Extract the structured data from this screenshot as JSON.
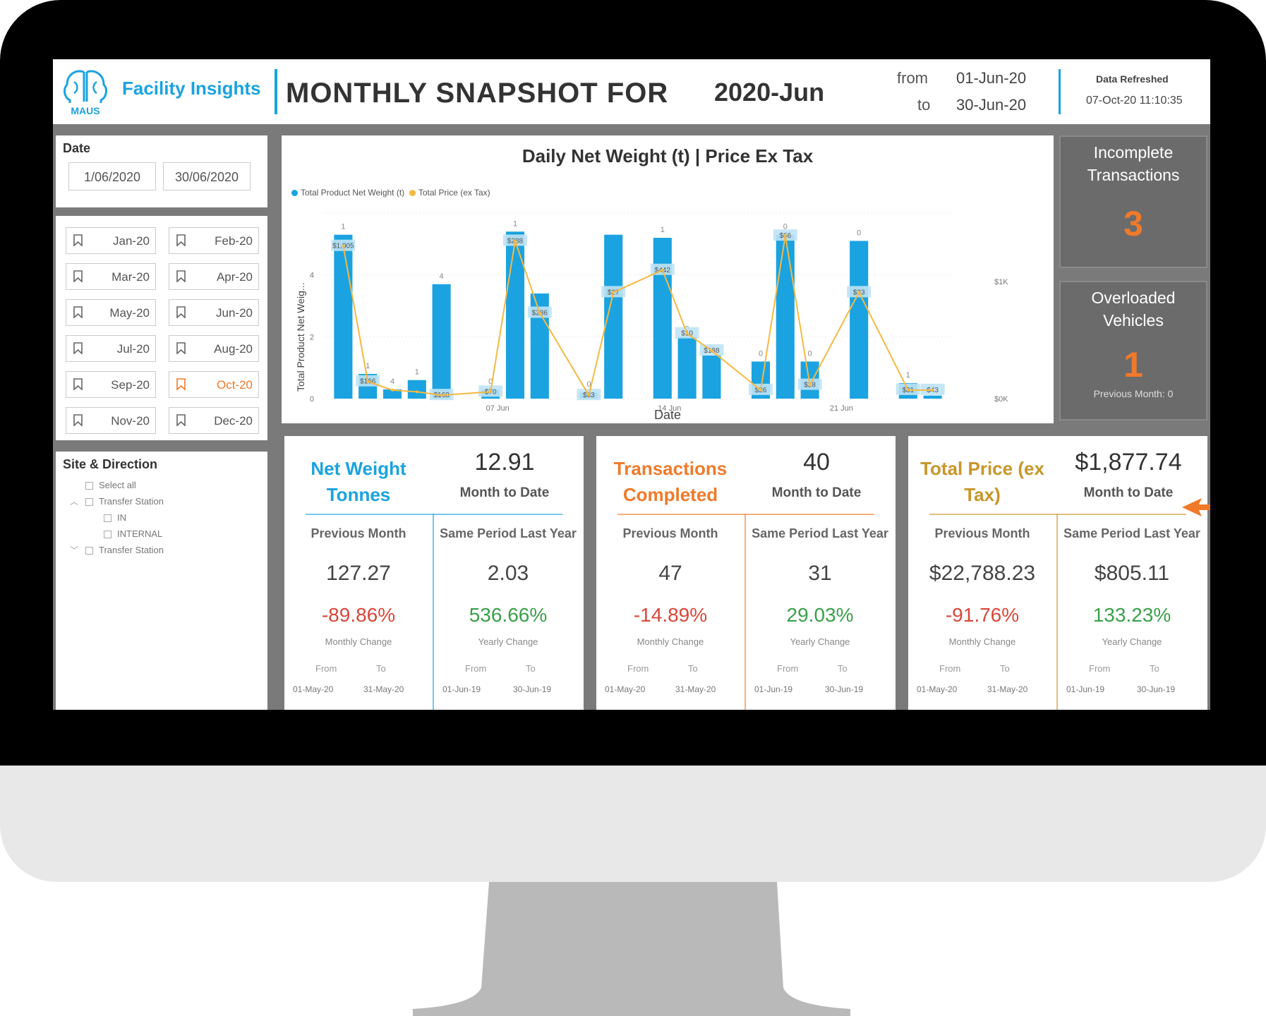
{
  "header": {
    "brand": "Facility Insights",
    "logo_text": "MAUS",
    "title": "MONTHLY SNAPSHOT FOR",
    "period": "2020-Jun",
    "from_label": "from",
    "to_label": "to",
    "from_date": "01-Jun-20",
    "to_date": "30-Jun-20",
    "refresh_label": "Data Refreshed",
    "refresh_value": "07-Oct-20 11:10:35"
  },
  "date_filter": {
    "title": "Date",
    "start": "1/06/2020",
    "end": "30/06/2020"
  },
  "months": [
    {
      "label": "Jan-20"
    },
    {
      "label": "Feb-20"
    },
    {
      "label": "Mar-20"
    },
    {
      "label": "Apr-20"
    },
    {
      "label": "May-20"
    },
    {
      "label": "Jun-20"
    },
    {
      "label": "Jul-20"
    },
    {
      "label": "Aug-20"
    },
    {
      "label": "Sep-20"
    },
    {
      "label": "Oct-20",
      "selected": true
    },
    {
      "label": "Nov-20"
    },
    {
      "label": "Dec-20"
    }
  ],
  "site_filter": {
    "title": "Site & Direction",
    "items": [
      "Select all",
      "Transfer Station",
      "IN",
      "INTERNAL",
      "Transfer Station"
    ]
  },
  "chart_data": {
    "type": "bar",
    "title": "Daily Net Weight (t) | Price Ex Tax",
    "xlabel": "Date",
    "ylabel": "Total Product Net Weig...",
    "legend": [
      "Total Product Net Weight (t)",
      "Total Price (ex Tax)"
    ],
    "legend_position": "top-left",
    "y_ticks": [
      "0",
      "2",
      "4"
    ],
    "y2_ticks": [
      "$0K",
      "$1K"
    ],
    "x_ticks": [
      "07 Jun",
      "14 Jun",
      "21 Jun"
    ],
    "ylim": [
      0,
      6
    ],
    "bars": [
      {
        "x": 1,
        "weight": 5.3,
        "count": "1",
        "price": 0.89,
        "price_label": "$1,005"
      },
      {
        "x": 2,
        "weight": 0.8,
        "count": "1",
        "price": 0.1,
        "price_label": "$166"
      },
      {
        "x": 3,
        "weight": 0.3,
        "count": "4",
        "price": 0.05,
        "price_label": ""
      },
      {
        "x": 4,
        "weight": 0.6,
        "count": "1",
        "price": 0.04,
        "price_label": ""
      },
      {
        "x": 5,
        "weight": 3.7,
        "count": "4",
        "price": 0.02,
        "price_label": "$168"
      },
      {
        "x": 7,
        "weight": 0.3,
        "count": "0",
        "price": 0.04,
        "price_label": "$70"
      },
      {
        "x": 8,
        "weight": 5.4,
        "count": "1",
        "price": 0.92,
        "price_label": "$288"
      },
      {
        "x": 9,
        "weight": 3.4,
        "count": "",
        "price": 0.5,
        "price_label": "$286"
      },
      {
        "x": 11,
        "weight": 0.2,
        "count": "0",
        "price": 0.02,
        "price_label": "$83"
      },
      {
        "x": 12,
        "weight": 5.3,
        "count": "",
        "price": 0.62,
        "price_label": "$27"
      },
      {
        "x": 14,
        "weight": 5.2,
        "count": "1",
        "price": 0.75,
        "price_label": "$442"
      },
      {
        "x": 15,
        "weight": 2.0,
        "count": "0",
        "price": 0.38,
        "price_label": "$10"
      },
      {
        "x": 16,
        "weight": 1.4,
        "count": "0",
        "price": 0.28,
        "price_label": "$188"
      },
      {
        "x": 18,
        "weight": 1.2,
        "count": "0",
        "price": 0.05,
        "price_label": "$26"
      },
      {
        "x": 19,
        "weight": 5.3,
        "count": "0",
        "price": 0.95,
        "price_label": "$66"
      },
      {
        "x": 20,
        "weight": 1.2,
        "count": "0",
        "price": 0.08,
        "price_label": "$28"
      },
      {
        "x": 22,
        "weight": 5.1,
        "count": "0",
        "price": 0.62,
        "price_label": "$33"
      },
      {
        "x": 24,
        "weight": 0.5,
        "count": "1",
        "price": 0.05,
        "price_label": "$81"
      },
      {
        "x": 25,
        "weight": 0.1,
        "count": "0",
        "price": 0.05,
        "price_label": "$43"
      }
    ]
  },
  "incomplete": {
    "title": "Incomplete Transactions",
    "value": "3"
  },
  "overloaded": {
    "title": "Overloaded Vehicles",
    "value": "1",
    "sub": "Previous Month: 0"
  },
  "kpis": [
    {
      "name": "Net Weight Tonnes",
      "color": "#1aa3e0",
      "mtd": "12.91",
      "mtd_label": "Month to Date",
      "left": {
        "head": "Previous Month",
        "value": "127.27",
        "pct": "-89.86%",
        "pct_sign": "neg",
        "change": "Monthly Change",
        "from": "From",
        "to": "To",
        "from_date": "01-May-20",
        "to_date": "31-May-20"
      },
      "right": {
        "head": "Same Period Last Year",
        "value": "2.03",
        "pct": "536.66%",
        "pct_sign": "pos",
        "change": "Yearly Change",
        "from": "From",
        "to": "To",
        "from_date": "01-Jun-19",
        "to_date": "30-Jun-19"
      }
    },
    {
      "name": "Transactions Completed",
      "color": "#f07a2a",
      "mtd": "40",
      "mtd_label": "Month to Date",
      "left": {
        "head": "Previous Month",
        "value": "47",
        "pct": "-14.89%",
        "pct_sign": "neg",
        "change": "Monthly Change",
        "from": "From",
        "to": "To",
        "from_date": "01-May-20",
        "to_date": "31-May-20"
      },
      "right": {
        "head": "Same Period Last Year",
        "value": "31",
        "pct": "29.03%",
        "pct_sign": "pos",
        "change": "Yearly Change",
        "from": "From",
        "to": "To",
        "from_date": "01-Jun-19",
        "to_date": "30-Jun-19"
      }
    },
    {
      "name": "Total Price (ex Tax)",
      "color": "#c8962a",
      "mtd": "$1,877.74",
      "mtd_label": "Month to Date",
      "left": {
        "head": "Previous Month",
        "value": "$22,788.23",
        "pct": "-91.76%",
        "pct_sign": "neg",
        "change": "Monthly Change",
        "from": "From",
        "to": "To",
        "from_date": "01-May-20",
        "to_date": "31-May-20"
      },
      "right": {
        "head": "Same Period Last Year",
        "value": "$805.11",
        "pct": "133.23%",
        "pct_sign": "pos",
        "change": "Yearly Change",
        "from": "From",
        "to": "To",
        "from_date": "01-Jun-19",
        "to_date": "30-Jun-19"
      }
    }
  ],
  "colors": {
    "accent_blue": "#1aa3e0",
    "accent_orange": "#f07a2a",
    "line_yellow": "#f5b942",
    "panel_grey": "#7a7a7a"
  }
}
